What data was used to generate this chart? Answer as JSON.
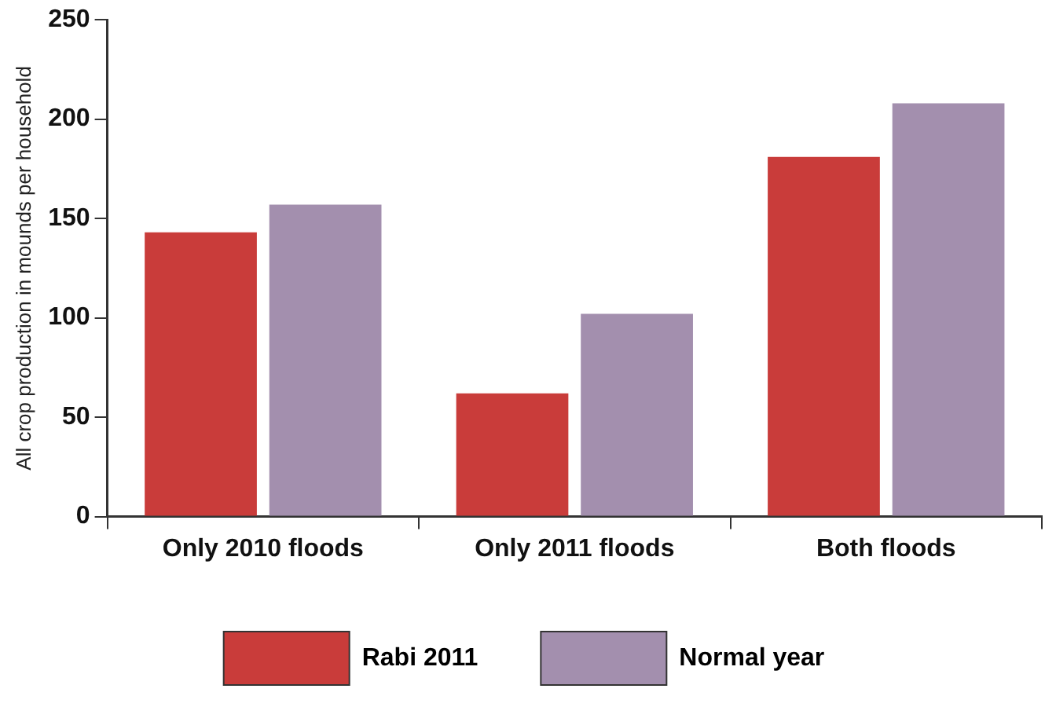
{
  "chart_data": {
    "type": "bar",
    "ylabel": "All crop production in mounds per household",
    "categories": [
      "Only 2010 floods",
      "Only 2011 floods",
      "Both floods"
    ],
    "series": [
      {
        "name": "Rabi 2011",
        "color": "#c93c3a",
        "values": [
          143,
          62,
          181
        ]
      },
      {
        "name": "Normal year",
        "color": "#a38fae",
        "values": [
          157,
          102,
          208
        ]
      }
    ],
    "ylim": [
      0,
      250
    ],
    "yticks": [
      0,
      50,
      100,
      150,
      200,
      250
    ],
    "grid": false,
    "legend": "bottom"
  }
}
